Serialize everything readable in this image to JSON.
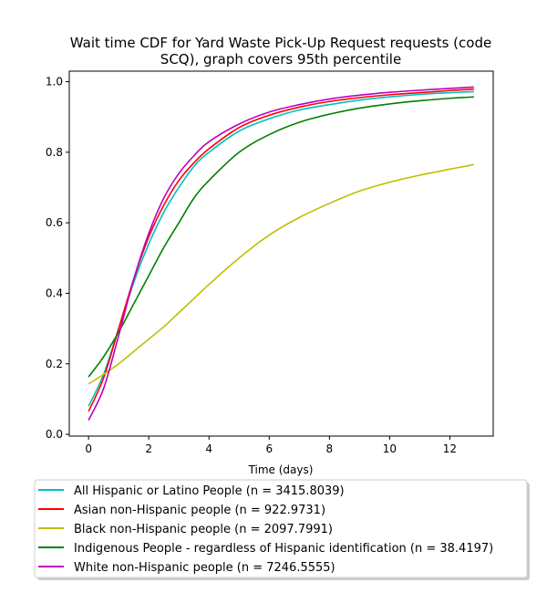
{
  "chart_data": {
    "type": "line",
    "title_line1": "Wait time CDF for Yard Waste Pick-Up Request  requests (code",
    "title_line2": "SCQ), graph covers 95th percentile",
    "xlabel": "Time (days)",
    "ylabel": "",
    "xlim": [
      -0.64,
      13.44
    ],
    "ylim": [
      -0.005,
      1.03
    ],
    "xticks": [
      0,
      2,
      4,
      6,
      8,
      10,
      12
    ],
    "yticks": [
      0.0,
      0.2,
      0.4,
      0.6,
      0.8,
      1.0
    ],
    "xtick_labels": [
      "0",
      "2",
      "4",
      "6",
      "8",
      "10",
      "12"
    ],
    "ytick_labels": [
      "0.0",
      "0.2",
      "0.4",
      "0.6",
      "0.8",
      "1.0"
    ],
    "grid": false,
    "legend_position": "bottom-center, below plot",
    "x": [
      0,
      0.5,
      1,
      1.5,
      2,
      2.5,
      3,
      3.5,
      4,
      5,
      6,
      7,
      8,
      9,
      10,
      11,
      12,
      12.8
    ],
    "series": [
      {
        "name": "All Hispanic or Latino People (n = 3415.8039)",
        "color": "#00bfbf",
        "values": [
          0.08,
          0.17,
          0.3,
          0.43,
          0.54,
          0.63,
          0.7,
          0.76,
          0.8,
          0.86,
          0.895,
          0.92,
          0.935,
          0.948,
          0.957,
          0.964,
          0.969,
          0.972
        ]
      },
      {
        "name": "Asian non-Hispanic people (n = 922.9731)",
        "color": "#ff0000",
        "values": [
          0.065,
          0.16,
          0.3,
          0.44,
          0.56,
          0.65,
          0.72,
          0.77,
          0.81,
          0.87,
          0.905,
          0.928,
          0.944,
          0.955,
          0.963,
          0.969,
          0.975,
          0.979
        ]
      },
      {
        "name": "Black non-Hispanic people (n = 2097.7991)",
        "color": "#bfbf00",
        "values": [
          0.143,
          0.17,
          0.2,
          0.235,
          0.27,
          0.305,
          0.345,
          0.385,
          0.425,
          0.5,
          0.565,
          0.615,
          0.655,
          0.69,
          0.715,
          0.735,
          0.752,
          0.765
        ]
      },
      {
        "name": "Indigenous People - regardless of Hispanic identification (n = 38.4197)",
        "color": "#008000",
        "values": [
          0.163,
          0.22,
          0.29,
          0.37,
          0.45,
          0.53,
          0.6,
          0.67,
          0.72,
          0.8,
          0.85,
          0.885,
          0.908,
          0.925,
          0.937,
          0.946,
          0.953,
          0.957
        ]
      },
      {
        "name": "White non-Hispanic people (n = 7246.5555)",
        "color": "#bf00bf",
        "values": [
          0.04,
          0.13,
          0.28,
          0.44,
          0.57,
          0.67,
          0.74,
          0.79,
          0.83,
          0.88,
          0.914,
          0.935,
          0.951,
          0.962,
          0.97,
          0.976,
          0.981,
          0.985
        ]
      }
    ]
  }
}
